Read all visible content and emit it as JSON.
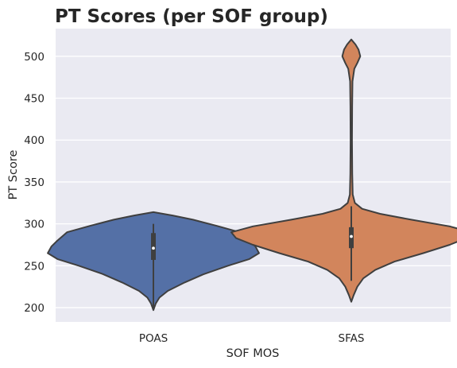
{
  "chart_data": {
    "type": "violin",
    "title": "PT Scores (per SOF group)",
    "xlabel": "SOF MOS",
    "ylabel": "PT Score",
    "categories": [
      "POAS",
      "SFAS"
    ],
    "ylim": [
      183,
      533
    ],
    "yticks": [
      200,
      250,
      300,
      350,
      400,
      450,
      500
    ],
    "grid": true,
    "colors": {
      "POAS": "#5470a6",
      "SFAS": "#d2855c",
      "background": "#eaeaf2",
      "outline": "#3f3f3f"
    },
    "series": [
      {
        "name": "POAS",
        "min": 197,
        "q1": 257,
        "median": 271,
        "q3": 289,
        "max": 300,
        "density": [
          [
            197,
            0
          ],
          [
            205,
            0.02
          ],
          [
            212,
            0.05
          ],
          [
            220,
            0.12
          ],
          [
            230,
            0.26
          ],
          [
            240,
            0.42
          ],
          [
            250,
            0.62
          ],
          [
            258,
            0.8
          ],
          [
            265,
            0.88
          ],
          [
            273,
            0.85
          ],
          [
            280,
            0.8
          ],
          [
            290,
            0.72
          ],
          [
            298,
            0.52
          ],
          [
            305,
            0.33
          ],
          [
            310,
            0.16
          ],
          [
            314,
            0
          ]
        ]
      },
      {
        "name": "SFAS",
        "min": 232,
        "q1": 271,
        "median": 285,
        "q3": 296,
        "max": 321,
        "density": [
          [
            207,
            0
          ],
          [
            215,
            0.02
          ],
          [
            225,
            0.05
          ],
          [
            235,
            0.1
          ],
          [
            245,
            0.2
          ],
          [
            255,
            0.36
          ],
          [
            265,
            0.6
          ],
          [
            275,
            0.82
          ],
          [
            283,
            0.96
          ],
          [
            290,
            1.0
          ],
          [
            297,
            0.82
          ],
          [
            305,
            0.5
          ],
          [
            312,
            0.24
          ],
          [
            318,
            0.09
          ],
          [
            325,
            0.03
          ],
          [
            335,
            0.012
          ],
          [
            360,
            0.008
          ],
          [
            400,
            0.006
          ],
          [
            440,
            0.007
          ],
          [
            470,
            0.01
          ],
          [
            485,
            0.025
          ],
          [
            492,
            0.05
          ],
          [
            500,
            0.075
          ],
          [
            508,
            0.06
          ],
          [
            514,
            0.035
          ],
          [
            520,
            0
          ]
        ]
      }
    ]
  }
}
